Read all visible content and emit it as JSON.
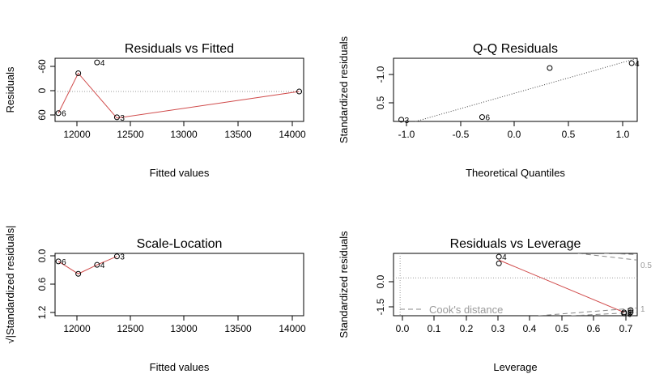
{
  "colors": {
    "fit_line": "#d04a4a",
    "ref_line": "#9a9a9a",
    "points": "#000000"
  },
  "chart_data": [
    {
      "type": "scatter",
      "title": "Residuals vs Fitted",
      "xlabel": "Fitted values",
      "ylabel": "Residuals",
      "xlim": [
        11850,
        14100
      ],
      "ylim": [
        -72,
        80
      ],
      "xticks": [
        "12000",
        "12500",
        "13000",
        "13500",
        "14000"
      ],
      "yticks": [
        "-60",
        "0",
        "60"
      ],
      "points": [
        {
          "x": 11880,
          "y": -52,
          "label": "6"
        },
        {
          "x": 12060,
          "y": 44,
          "label": ""
        },
        {
          "x": 12230,
          "y": 70,
          "label": "4"
        },
        {
          "x": 12410,
          "y": -62,
          "label": "3"
        },
        {
          "x": 14060,
          "y": 0,
          "label": ""
        }
      ],
      "smooth": [
        [
          11880,
          -52
        ],
        [
          12060,
          44
        ],
        [
          12410,
          -64
        ],
        [
          14060,
          0
        ]
      ],
      "reference": {
        "type": "hline",
        "y": 0
      }
    },
    {
      "type": "scatter",
      "title": "Q-Q Residuals",
      "xlabel": "Theoretical Quantiles",
      "ylabel": "Standardized residuals",
      "xlim": [
        -1.1,
        1.1
      ],
      "ylim": [
        -1.65,
        0.95
      ],
      "xticks": [
        "-1.0",
        "-0.5",
        "0.0",
        "0.5",
        "1.0"
      ],
      "yticks": [
        "-1.0",
        "0.5"
      ],
      "points": [
        {
          "x": -1.03,
          "y": -1.58,
          "label": "3"
        },
        {
          "x": -0.3,
          "y": -1.47,
          "label": "6"
        },
        {
          "x": 0.31,
          "y": 0.55,
          "label": ""
        },
        {
          "x": 1.05,
          "y": 0.75,
          "label": "4"
        }
      ],
      "reference": {
        "type": "line",
        "from": [
          -0.9,
          -1.65
        ],
        "to": [
          1.1,
          0.95
        ]
      }
    },
    {
      "type": "scatter",
      "title": "Scale-Location",
      "xlabel": "Fitted values",
      "ylabel": "√|Standardized residuals|",
      "xlim": [
        11850,
        14100
      ],
      "ylim": [
        -0.05,
        1.2
      ],
      "xticks": [
        "12000",
        "12500",
        "13000",
        "13500",
        "14000"
      ],
      "yticks": [
        "0.0",
        "0.6",
        "1.2"
      ],
      "points": [
        {
          "x": 11880,
          "y": 1.04,
          "label": "6"
        },
        {
          "x": 12060,
          "y": 0.79,
          "label": ""
        },
        {
          "x": 12230,
          "y": 0.97,
          "label": "4"
        },
        {
          "x": 12410,
          "y": 1.14,
          "label": "3"
        }
      ],
      "smooth": [
        [
          11880,
          1.04
        ],
        [
          12060,
          0.79
        ],
        [
          12230,
          0.97
        ],
        [
          12410,
          1.14
        ]
      ]
    },
    {
      "type": "scatter",
      "title": "Residuals vs Leverage",
      "xlabel": "Leverage",
      "ylabel": "Standardized residuals",
      "xlim": [
        -0.02,
        0.72
      ],
      "ylim": [
        -1.7,
        1.1
      ],
      "xticks": [
        "0.0",
        "0.1",
        "0.2",
        "0.3",
        "0.4",
        "0.5",
        "0.6",
        "0.7"
      ],
      "yticks": [
        "-1.5",
        "0.0"
      ],
      "points": [
        {
          "x": 0.3,
          "y": 0.95,
          "label": "4"
        },
        {
          "x": 0.3,
          "y": 0.65,
          "label": ""
        },
        {
          "x": 0.68,
          "y": -1.55,
          "label": "3"
        },
        {
          "x": 0.68,
          "y": -1.6,
          "label": "6"
        },
        {
          "x": 0.7,
          "y": -1.45,
          "label": ""
        },
        {
          "x": 0.7,
          "y": -1.55,
          "label": ""
        }
      ],
      "smooth": [
        [
          0.3,
          0.8
        ],
        [
          0.68,
          -1.55
        ]
      ],
      "reference": {
        "type": "hline",
        "y": 0
      },
      "cooks_distance": {
        "legend": "Cook's distance",
        "levels": [
          "0.5",
          "1"
        ],
        "curves": [
          {
            "level": "0.5",
            "points": [
              [
                0.54,
                1.1
              ],
              [
                0.72,
                0.8
              ]
            ]
          },
          {
            "level": "0.5",
            "points": [
              [
                0.42,
                -1.7
              ],
              [
                0.72,
                -1.35
              ]
            ]
          },
          {
            "level": "1",
            "points": [
              [
                0.62,
                1.1
              ],
              [
                0.72,
                1.05
              ]
            ]
          },
          {
            "level": "1",
            "points": [
              [
                0.52,
                -1.7
              ],
              [
                0.72,
                -1.55
              ]
            ]
          }
        ]
      }
    }
  ]
}
